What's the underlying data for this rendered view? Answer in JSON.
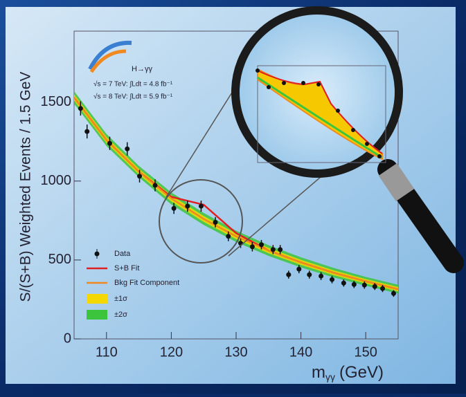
{
  "chart_data": {
    "type": "scatter",
    "y_label": "S/(S+B) Weighted Events / 1.5 GeV",
    "x_label": {
      "main": "m",
      "sub": "γγ",
      "unit": "(GeV)"
    },
    "annotations": [
      "H→γγ",
      "√s = 7 TeV: ∫Ldt = 4.8 fb⁻¹",
      "√s = 8 TeV: ∫Ldt = 5.9 fb⁻¹"
    ],
    "xlim": [
      105,
      155
    ],
    "ylim": [
      0,
      1950
    ],
    "xticks": [
      110,
      120,
      130,
      140,
      150
    ],
    "yticks": [
      0,
      500,
      1000,
      1500
    ],
    "data": {
      "name": "Data",
      "color": "#111111",
      "x": [
        106.0,
        107.0,
        110.5,
        113.2,
        115.1,
        117.5,
        120.4,
        122.5,
        124.6,
        126.8,
        128.8,
        130.7,
        132.5,
        133.9,
        135.7,
        136.8,
        138.1,
        139.7,
        141.3,
        143.1,
        144.8,
        146.6,
        148.2,
        149.8,
        151.4,
        152.6,
        154.3
      ],
      "values": [
        1460,
        1314,
        1239,
        1204,
        1031,
        973,
        827,
        841,
        841,
        739,
        650,
        606,
        584,
        597,
        566,
        566,
        407,
        442,
        407,
        398,
        376,
        354,
        345,
        341,
        332,
        319,
        288
      ],
      "errors": [
        45,
        44,
        42,
        42,
        40,
        38,
        35,
        35,
        35,
        33,
        31,
        30,
        30,
        30,
        29,
        29,
        25,
        26,
        25,
        25,
        24,
        23,
        23,
        23,
        22,
        22,
        21
      ]
    },
    "fit_x": [
      105,
      110,
      115,
      120,
      125,
      130,
      135,
      140,
      145,
      150,
      155
    ],
    "series": [
      {
        "name": "S+B Fit",
        "color": "#e02020",
        "values": [
          1530,
          1260,
          1060,
          900,
          850,
          670,
          560,
          485,
          420,
          365,
          315
        ]
      },
      {
        "name": "Bkg Fit Component",
        "color": "#f08a20",
        "values": [
          1530,
          1260,
          1060,
          890,
          760,
          650,
          560,
          485,
          420,
          365,
          315
        ]
      }
    ],
    "bands": [
      {
        "name": "±2σ",
        "color": "#3cc43c",
        "lower": [
          1490,
          1222,
          1024,
          852,
          722,
          614,
          526,
          453,
          390,
          337,
          287
        ],
        "upper": [
          1570,
          1298,
          1096,
          928,
          798,
          686,
          594,
          517,
          450,
          393,
          343
        ]
      },
      {
        "name": "±1σ",
        "color": "#f5d800",
        "lower": [
          1510,
          1241,
          1042,
          871,
          741,
          632,
          543,
          469,
          405,
          351,
          301
        ],
        "upper": [
          1550,
          1279,
          1078,
          909,
          779,
          668,
          577,
          501,
          435,
          379,
          329
        ]
      }
    ]
  }
}
